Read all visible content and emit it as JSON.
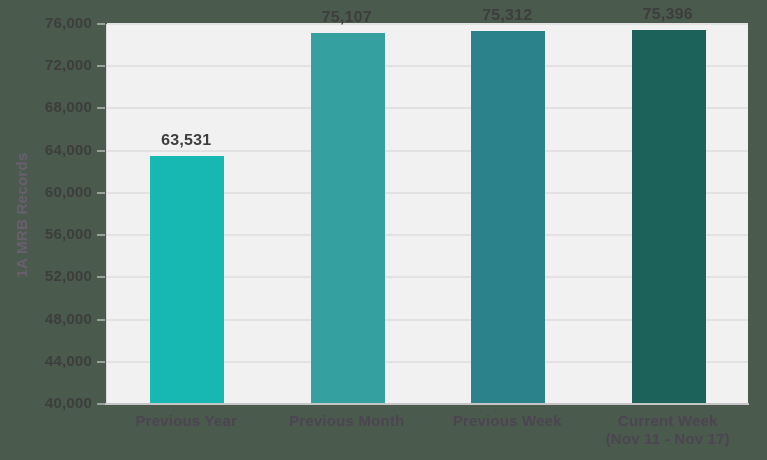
{
  "chart_data": {
    "type": "bar",
    "title": "",
    "xlabel": "",
    "ylabel": "1A MRB Records",
    "categories": [
      "Previous Year",
      "Previous Month",
      "Previous Week",
      "Current Week (Nov 11 - Nov 17)"
    ],
    "category_lines": [
      [
        "Previous Year"
      ],
      [
        "Previous Month"
      ],
      [
        "Previous Week"
      ],
      [
        "Current Week",
        "(Nov 11 - Nov 17)"
      ]
    ],
    "values": [
      63531,
      75107,
      75312,
      75396
    ],
    "value_labels": [
      "63,531",
      "75,107",
      "75,312",
      "75,396"
    ],
    "bar_colors": [
      "#17b8b2",
      "#35a0a0",
      "#2b828a",
      "#1d615b"
    ],
    "ylim": [
      40000,
      76000
    ],
    "ytick_step": 4000,
    "ytick_labels": [
      "40,000",
      "44,000",
      "48,000",
      "52,000",
      "56,000",
      "60,000",
      "64,000",
      "68,000",
      "72,000",
      "76,000"
    ],
    "grid": true,
    "legend": false
  },
  "colors": {
    "page_bg": "#4a5a4c",
    "plot_bg": "#f1f1f1",
    "gridline": "#e2e2e2",
    "axis_line": "#c6c6c6",
    "tick": "#9aa09b",
    "tick_label": "#3d3d3d",
    "value_label": "#3d3d3d",
    "category_label": "#4c4452",
    "axis_title": "#6b5e70"
  }
}
